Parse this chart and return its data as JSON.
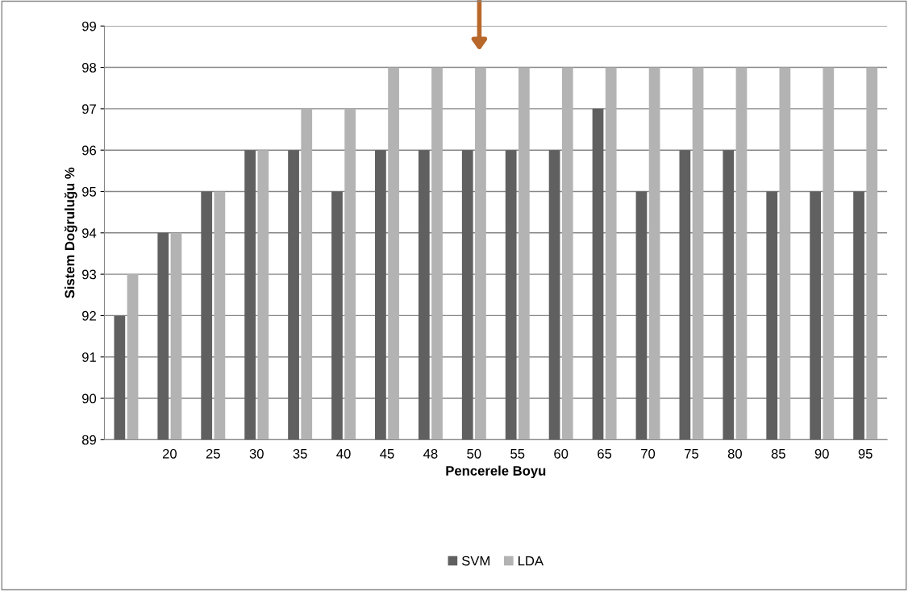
{
  "chart_data": {
    "type": "bar",
    "xlabel": "Pencerele Boyu",
    "ylabel": "Sistem Doğruluğu %",
    "categories": [
      null,
      "20",
      "25",
      "30",
      "35",
      "40",
      "45",
      "48",
      "50",
      "55",
      "60",
      "65",
      "70",
      "75",
      "80",
      "85",
      "90",
      "95"
    ],
    "series": [
      {
        "name": "SVM",
        "color": "#606060",
        "values": [
          92,
          94,
          95,
          96,
          96,
          95,
          96,
          96,
          96,
          96,
          96,
          97,
          95,
          96,
          96,
          95,
          95,
          95
        ]
      },
      {
        "name": "LDA",
        "color": "#b3b3b3",
        "values": [
          93,
          94,
          95,
          96,
          97,
          97,
          98,
          98,
          98,
          98,
          98,
          98,
          98,
          98,
          98,
          98,
          98,
          98
        ]
      }
    ],
    "ylim": [
      89,
      99
    ],
    "yticks": [
      89,
      90,
      91,
      92,
      93,
      94,
      95,
      96,
      97,
      98,
      99
    ],
    "grid": "y",
    "legend": "bottom"
  }
}
